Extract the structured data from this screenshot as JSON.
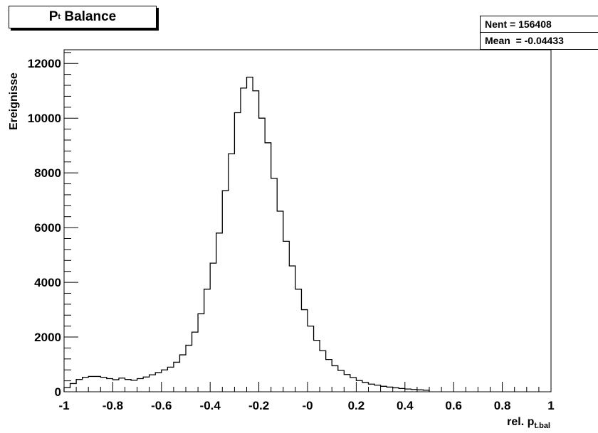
{
  "chart_data": {
    "type": "histogram",
    "title_main": "P",
    "title_sub": "t",
    "title_rest": " Balance",
    "xlabel_main": "rel. p",
    "xlabel_sub": "t.bal",
    "ylabel": "Ereignisse",
    "xlim": [
      -1,
      1
    ],
    "ylim": [
      0,
      12500
    ],
    "x_tick_values": [
      -1,
      -0.8,
      -0.6,
      -0.4,
      -0.2,
      0,
      0.2,
      0.4,
      0.6,
      0.8,
      1
    ],
    "x_tick_labels": [
      "-1",
      "-0.8",
      "-0.6",
      "-0.4",
      "-0.2",
      "-0",
      "0.2",
      "0.4",
      "0.6",
      "0.8",
      "1"
    ],
    "y_tick_values": [
      0,
      2000,
      4000,
      6000,
      8000,
      10000,
      12000
    ],
    "y_tick_labels": [
      "0",
      "2000",
      "4000",
      "6000",
      "8000",
      "10000",
      "12000"
    ],
    "bin_edges_start": -1,
    "bin_width": 0.025,
    "counts": [
      150,
      300,
      450,
      530,
      560,
      560,
      530,
      480,
      440,
      500,
      450,
      420,
      480,
      540,
      620,
      700,
      800,
      900,
      1080,
      1350,
      1700,
      2180,
      2850,
      3750,
      4700,
      5800,
      7350,
      8700,
      10200,
      11100,
      11500,
      11000,
      10000,
      9100,
      7800,
      6600,
      5500,
      4600,
      3750,
      3000,
      2400,
      1880,
      1500,
      1180,
      950,
      780,
      630,
      520,
      410,
      340,
      280,
      240,
      200,
      170,
      145,
      120,
      100,
      85,
      70,
      55
    ],
    "stats": {
      "entries_line": "Nent = 156408",
      "mean_line": "Mean  = -0.04433"
    }
  }
}
